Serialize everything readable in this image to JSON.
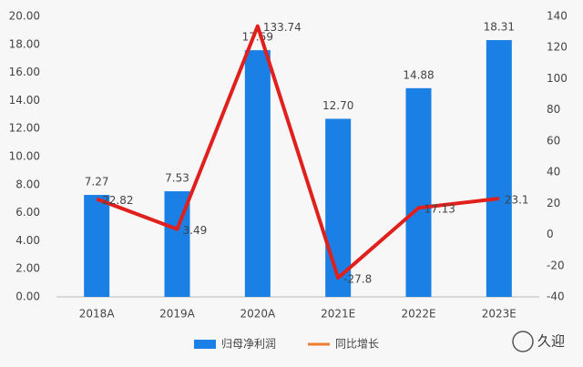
{
  "chart_data": {
    "type": "bar-line",
    "categories": [
      "2018A",
      "2019A",
      "2020A",
      "2021E",
      "2022E",
      "2023E"
    ],
    "series": [
      {
        "name": "归母净利润",
        "type": "bar",
        "color": "#1a80e6",
        "values": [
          7.27,
          7.53,
          17.59,
          12.7,
          14.88,
          18.31
        ],
        "value_labels": [
          "7.27",
          "7.53",
          "17.59",
          "12.70",
          "14.88",
          "18.31"
        ]
      },
      {
        "name": "同比增长",
        "type": "line",
        "axis": "y2",
        "color": "#e0201c",
        "legend_color": "#ed7d31",
        "values": [
          22.82,
          3.49,
          133.74,
          -27.8,
          17.13,
          23.1
        ]
      }
    ],
    "ylim": [
      0,
      20
    ],
    "yticks": [
      {
        "value": 0,
        "label": "0.00"
      },
      {
        "value": 2,
        "label": "2.00"
      },
      {
        "value": 4,
        "label": "4.00"
      },
      {
        "value": 6,
        "label": "6.00"
      },
      {
        "value": 8,
        "label": "8.00"
      },
      {
        "value": 10,
        "label": "10.00"
      },
      {
        "value": 12,
        "label": "12.00"
      },
      {
        "value": 14,
        "label": "14.00"
      },
      {
        "value": 16,
        "label": "16.00"
      },
      {
        "value": 18,
        "label": "18.00"
      },
      {
        "value": 20,
        "label": "20.00"
      }
    ],
    "y2lim": [
      -40,
      140
    ],
    "y2ticks": [
      -40,
      -20,
      0,
      20,
      40,
      60,
      80,
      100,
      120,
      140
    ],
    "legend": "bottom",
    "watermark": "久迎"
  }
}
